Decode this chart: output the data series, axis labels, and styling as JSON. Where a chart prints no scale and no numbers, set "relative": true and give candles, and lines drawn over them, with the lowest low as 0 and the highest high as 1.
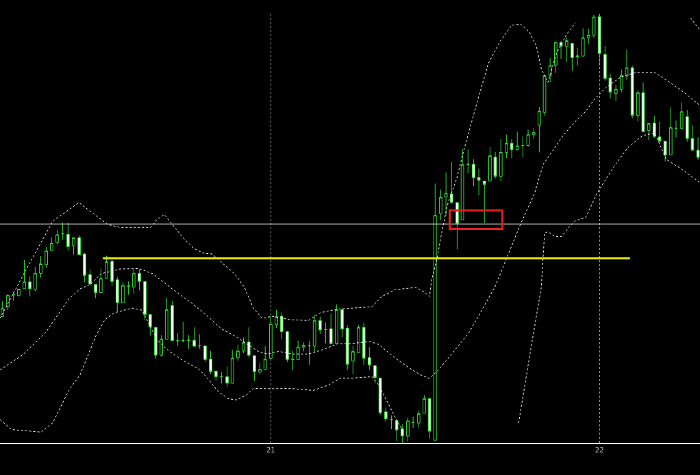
{
  "chart_data": {
    "type": "candlestick",
    "relative": true,
    "color": "#33dd33",
    "grid": "x",
    "tick_labels": "x",
    "xlim": [
      20.176,
      22.306
    ],
    "xticks": [
      21,
      22
    ],
    "x": [
      20.183,
      20.2,
      20.217,
      20.233,
      20.25,
      20.267,
      20.283,
      20.3,
      20.317,
      20.333,
      20.35,
      20.367,
      20.383,
      20.4,
      20.417,
      20.433,
      20.45,
      20.467,
      20.483,
      20.5,
      20.517,
      20.533,
      20.55,
      20.567,
      20.583,
      20.6,
      20.617,
      20.633,
      20.65,
      20.667,
      20.683,
      20.7,
      20.717,
      20.733,
      20.75,
      20.767,
      20.783,
      20.8,
      20.817,
      20.833,
      20.85,
      20.867,
      20.883,
      20.9,
      20.917,
      20.933,
      20.95,
      20.967,
      20.983,
      21,
      21.017,
      21.033,
      21.05,
      21.067,
      21.083,
      21.1,
      21.117,
      21.133,
      21.15,
      21.167,
      21.183,
      21.2,
      21.217,
      21.233,
      21.25,
      21.267,
      21.283,
      21.3,
      21.317,
      21.333,
      21.35,
      21.367,
      21.383,
      21.4,
      21.417,
      21.433,
      21.45,
      21.467,
      21.483,
      21.5,
      21.517,
      21.533,
      21.55,
      21.567,
      21.583,
      21.6,
      21.617,
      21.633,
      21.65,
      21.667,
      21.683,
      21.7,
      21.717,
      21.733,
      21.75,
      21.767,
      21.783,
      21.8,
      21.817,
      21.833,
      21.85,
      21.867,
      21.883,
      21.9,
      21.917,
      21.933,
      21.95,
      21.967,
      21.983,
      22,
      22.017,
      22.033,
      22.05,
      22.067,
      22.083,
      22.1,
      22.117,
      22.133,
      22.15,
      22.167,
      22.183,
      22.2,
      22.217,
      22.233,
      22.25,
      22.267,
      22.283,
      22.3
    ],
    "ohlc": [
      [
        0.294,
        0.33,
        0.294,
        0.313
      ],
      [
        0.318,
        0.346,
        0.309,
        0.344
      ],
      [
        0.345,
        0.351,
        0.331,
        0.345
      ],
      [
        0.343,
        0.358,
        0.341,
        0.358
      ],
      [
        0.359,
        0.426,
        0.359,
        0.375
      ],
      [
        0.375,
        0.388,
        0.341,
        0.359
      ],
      [
        0.357,
        0.41,
        0.353,
        0.395
      ],
      [
        0.395,
        0.435,
        0.385,
        0.417
      ],
      [
        0.415,
        0.456,
        0.408,
        0.447
      ],
      [
        0.448,
        0.479,
        0.447,
        0.465
      ],
      [
        0.467,
        0.496,
        0.463,
        0.485
      ],
      [
        0.487,
        0.513,
        0.473,
        0.487
      ],
      [
        0.486,
        0.513,
        0.448,
        0.457
      ],
      [
        0.459,
        0.478,
        0.439,
        0.478
      ],
      [
        0.478,
        0.484,
        0.438,
        0.438
      ],
      [
        0.44,
        0.443,
        0.374,
        0.39
      ],
      [
        0.392,
        0.404,
        0.368,
        0.37
      ],
      [
        0.369,
        0.369,
        0.337,
        0.35
      ],
      [
        0.35,
        0.406,
        0.35,
        0.383
      ],
      [
        0.383,
        0.436,
        0.383,
        0.422
      ],
      [
        0.423,
        0.427,
        0.366,
        0.376
      ],
      [
        0.38,
        0.387,
        0.307,
        0.326
      ],
      [
        0.326,
        0.375,
        0.326,
        0.367
      ],
      [
        0.365,
        0.376,
        0.345,
        0.365
      ],
      [
        0.363,
        0.404,
        0.348,
        0.395
      ],
      [
        0.395,
        0.404,
        0.355,
        0.376
      ],
      [
        0.376,
        0.376,
        0.287,
        0.299
      ],
      [
        0.299,
        0.299,
        0.25,
        0.27
      ],
      [
        0.269,
        0.271,
        0.195,
        0.204
      ],
      [
        0.204,
        0.251,
        0.202,
        0.242
      ],
      [
        0.241,
        0.338,
        0.241,
        0.31
      ],
      [
        0.32,
        0.33,
        0.238,
        0.238
      ],
      [
        0.238,
        0.256,
        0.225,
        0.238
      ],
      [
        0.238,
        0.282,
        0.234,
        0.238
      ],
      [
        0.239,
        0.251,
        0.219,
        0.239
      ],
      [
        0.239,
        0.269,
        0.223,
        0.225
      ],
      [
        0.226,
        0.253,
        0.219,
        0.226
      ],
      [
        0.226,
        0.226,
        0.188,
        0.194
      ],
      [
        0.195,
        0.214,
        0.161,
        0.166
      ],
      [
        0.167,
        0.167,
        0.145,
        0.154
      ],
      [
        0.154,
        0.165,
        0.138,
        0.154
      ],
      [
        0.154,
        0.178,
        0.13,
        0.139
      ],
      [
        0.139,
        0.217,
        0.138,
        0.197
      ],
      [
        0.198,
        0.229,
        0.191,
        0.214
      ],
      [
        0.214,
        0.245,
        0.209,
        0.234
      ],
      [
        0.235,
        0.269,
        0.199,
        0.204
      ],
      [
        0.203,
        0.203,
        0.144,
        0.165
      ],
      [
        0.165,
        0.187,
        0.16,
        0.171
      ],
      [
        0.171,
        0.225,
        0.171,
        0.195
      ],
      [
        0.197,
        0.295,
        0.197,
        0.277
      ],
      [
        0.275,
        0.31,
        0.268,
        0.294
      ],
      [
        0.295,
        0.304,
        0.242,
        0.259
      ],
      [
        0.259,
        0.261,
        0.188,
        0.194
      ],
      [
        0.194,
        0.214,
        0.169,
        0.194
      ],
      [
        0.194,
        0.238,
        0.193,
        0.223
      ],
      [
        0.223,
        0.234,
        0.213,
        0.227
      ],
      [
        0.226,
        0.238,
        0.182,
        0.226
      ],
      [
        0.225,
        0.298,
        0.21,
        0.285
      ],
      [
        0.285,
        0.294,
        0.254,
        0.263
      ],
      [
        0.264,
        0.28,
        0.232,
        0.264
      ],
      [
        0.266,
        0.301,
        0.229,
        0.231
      ],
      [
        0.231,
        0.323,
        0.231,
        0.31
      ],
      [
        0.31,
        0.314,
        0.245,
        0.265
      ],
      [
        0.267,
        0.274,
        0.169,
        0.183
      ],
      [
        0.191,
        0.226,
        0.16,
        0.213
      ],
      [
        0.21,
        0.274,
        0.21,
        0.269
      ],
      [
        0.269,
        0.28,
        0.181,
        0.197
      ],
      [
        0.199,
        0.223,
        0.17,
        0.181
      ],
      [
        0.18,
        0.181,
        0.138,
        0.152
      ],
      [
        0.151,
        0.151,
        0.065,
        0.07
      ],
      [
        0.072,
        0.082,
        0.049,
        0.056
      ],
      [
        0.054,
        0.064,
        0.032,
        0.054
      ],
      [
        0.052,
        0.052,
        0.005,
        0.03
      ],
      [
        0.033,
        0.043,
        0,
        0.016
      ],
      [
        0.016,
        0.059,
        0.003,
        0.051
      ],
      [
        0.047,
        0.061,
        0.035,
        0.047
      ],
      [
        0.046,
        0.075,
        0.036,
        0.068
      ],
      [
        0.069,
        0.111,
        0.069,
        0.103
      ],
      [
        0.103,
        0.105,
        0.01,
        0.027
      ],
      [
        0.006,
        0.604,
        0.006,
        0.53
      ],
      [
        0.534,
        0.59,
        0.519,
        0.572
      ],
      [
        0.573,
        0.63,
        0.529,
        0.581
      ],
      [
        0.58,
        0.654,
        0.558,
        0.56
      ],
      [
        0.56,
        0.56,
        0.451,
        0.511
      ],
      [
        0.52,
        0.684,
        0.52,
        0.648
      ],
      [
        0.649,
        0.684,
        0.628,
        0.649
      ],
      [
        0.649,
        0.661,
        0.598,
        0.618
      ],
      [
        0.618,
        0.639,
        0.577,
        0.612
      ],
      [
        0.61,
        0.61,
        0.512,
        0.602
      ],
      [
        0.61,
        0.689,
        0.61,
        0.669
      ],
      [
        0.666,
        0.678,
        0.616,
        0.621
      ],
      [
        0.621,
        0.708,
        0.609,
        0.677
      ],
      [
        0.677,
        0.718,
        0.663,
        0.698
      ],
      [
        0.698,
        0.708,
        0.663,
        0.683
      ],
      [
        0.683,
        0.725,
        0.682,
        0.692
      ],
      [
        0.693,
        0.714,
        0.666,
        0.693
      ],
      [
        0.693,
        0.73,
        0.69,
        0.718
      ],
      [
        0.718,
        0.733,
        0.708,
        0.723
      ],
      [
        0.74,
        0.783,
        0.677,
        0.773
      ],
      [
        0.77,
        0.856,
        0.763,
        0.856
      ],
      [
        0.856,
        0.896,
        0.84,
        0.879
      ],
      [
        0.88,
        0.935,
        0.862,
        0.933
      ],
      [
        0.933,
        0.936,
        0.895,
        0.924
      ],
      [
        0.924,
        0.945,
        0.887,
        0.937
      ],
      [
        0.931,
        0.931,
        0.867,
        0.897
      ],
      [
        0.899,
        0.921,
        0.879,
        0.902
      ],
      [
        0.901,
        0.966,
        0.901,
        0.944
      ],
      [
        0.944,
        0.965,
        0.93,
        0.95
      ],
      [
        0.95,
        0.997,
        0.944,
        0.992
      ],
      [
        0.993,
        1,
        0.879,
        0.907
      ],
      [
        0.905,
        0.925,
        0.844,
        0.849
      ],
      [
        0.85,
        0.86,
        0.803,
        0.817
      ],
      [
        0.814,
        0.834,
        0.796,
        0.824
      ],
      [
        0.824,
        0.87,
        0.817,
        0.856
      ],
      [
        0.855,
        0.916,
        0.846,
        0.874
      ],
      [
        0.874,
        0.879,
        0.756,
        0.763
      ],
      [
        0.763,
        0.821,
        0.749,
        0.816
      ],
      [
        0.816,
        0.84,
        0.725,
        0.725
      ],
      [
        0.728,
        0.744,
        0.705,
        0.744
      ],
      [
        0.745,
        0.761,
        0.71,
        0.714
      ],
      [
        0.713,
        0.749,
        0.702,
        0.703
      ],
      [
        0.703,
        0.703,
        0.656,
        0.67
      ],
      [
        0.671,
        0.782,
        0.671,
        0.735
      ],
      [
        0.733,
        0.751,
        0.712,
        0.733
      ],
      [
        0.733,
        0.793,
        0.733,
        0.772
      ],
      [
        0.76,
        0.775,
        0.702,
        0.709
      ],
      [
        0.709,
        0.74,
        0.68,
        0.682
      ],
      [
        0.682,
        0.712,
        0.659,
        0.665
      ]
    ],
    "series": [
      {
        "type": "line",
        "color": "#ffffff",
        "line_style": "dashed",
        "x": [
          20.176,
          20.26,
          20.337,
          20.416,
          20.503,
          20.541,
          20.635,
          20.655,
          20.676,
          20.691,
          20.733,
          20.766,
          20.795,
          20.822,
          20.849,
          20.878,
          20.895,
          20.92,
          20.947,
          20.974,
          21.004,
          21.058,
          21.114,
          21.15,
          21.198,
          21.249,
          21.308,
          21.337,
          21.379,
          21.441,
          21.468,
          21.483,
          21.489,
          21.506,
          21.52,
          21.537,
          21.566,
          21.587,
          21.629,
          21.662,
          21.698,
          21.733,
          21.76,
          21.787,
          21.808,
          21.823,
          21.843,
          21.87,
          21.9,
          21.927,
          21.979,
          22.277,
          22.306
        ],
        "values": [
          0.29,
          0.41,
          0.517,
          0.56,
          0.509,
          0.502,
          0.502,
          0.521,
          0.532,
          0.518,
          0.478,
          0.453,
          0.442,
          0.44,
          0.421,
          0.402,
          0.389,
          0.362,
          0.314,
          0.29,
          0.295,
          0.287,
          0.285,
          0.303,
          0.311,
          0.314,
          0.317,
          0.341,
          0.357,
          0.362,
          0.351,
          0.341,
          0.378,
          0.43,
          0.489,
          0.553,
          0.617,
          0.681,
          0.797,
          0.884,
          0.936,
          0.973,
          0.976,
          0.957,
          0.925,
          0.872,
          0.84,
          0.909,
          0.952,
          0.979,
          null,
          0.99,
          0.962
        ]
      },
      {
        "type": "line",
        "color": "#ffffff",
        "line_style": "dashed",
        "x": [
          20.176,
          20.245,
          20.316,
          20.385,
          20.42,
          20.453,
          20.483,
          20.541,
          20.599,
          20.641,
          20.703,
          20.76,
          20.808,
          20.849,
          20.895,
          20.926,
          20.962,
          20.989,
          21.025,
          21.066,
          21.114,
          21.162,
          21.204,
          21.239,
          21.302,
          21.329,
          21.379,
          21.42,
          21.454,
          21.483,
          21.51,
          21.545,
          21.579,
          21.604,
          21.683,
          21.76,
          21.802,
          21.829,
          21.858,
          21.891,
          21.927,
          21.958,
          21.985,
          22.02,
          22.066,
          22.112,
          22.168,
          22.204,
          22.25,
          22.306
        ],
        "values": [
          0.17,
          0.205,
          0.258,
          0.335,
          0.359,
          0.37,
          0.394,
          0.405,
          0.406,
          0.394,
          0.357,
          0.325,
          0.295,
          0.266,
          0.247,
          0.231,
          0.213,
          0.207,
          0.213,
          0.207,
          0.207,
          0.218,
          0.231,
          0.231,
          0.236,
          0.229,
          0.197,
          0.175,
          0.159,
          0.15,
          0.17,
          0.202,
          0.234,
          0.258,
          0.365,
          0.51,
          0.58,
          0.649,
          0.681,
          0.718,
          0.749,
          0.772,
          0.801,
          0.828,
          0.853,
          0.863,
          0.863,
          0.845,
          0.821,
          0.786
        ]
      },
      {
        "type": "line",
        "color": "#ffffff",
        "line_style": "dashed",
        "x": [
          20.176,
          20.212,
          20.301,
          20.337,
          20.385,
          20.42,
          20.468,
          20.495,
          20.524,
          20.578,
          20.608,
          20.655,
          20.691,
          20.739,
          20.78,
          20.808,
          20.837,
          20.87,
          20.895,
          20.926,
          20.947,
          21.004,
          21.058,
          21.129,
          21.177,
          21.212,
          21.249,
          21.308,
          21.329,
          21.35,
          21.379,
          21.406,
          21.583,
          21.754,
          21.791,
          21.823,
          21.833,
          21.843,
          21.864,
          21.885,
          21.906,
          21.927,
          21.958,
          21.993,
          22.039,
          22.085,
          22.131,
          22.168,
          22.204,
          22.25,
          22.306
        ],
        "values": [
          0.054,
          0.031,
          0.025,
          0.047,
          0.122,
          0.159,
          0.25,
          0.287,
          0.303,
          0.314,
          0.309,
          0.239,
          0.213,
          0.189,
          0.173,
          0.15,
          0.122,
          0.103,
          0.1,
          0.111,
          0.127,
          0.126,
          0.127,
          0.122,
          0.135,
          0.151,
          0.151,
          0.154,
          0.134,
          0.102,
          0.059,
          0.022,
          null,
          0.046,
          0.218,
          0.362,
          0.489,
          0.492,
          0.481,
          0.481,
          0.501,
          0.518,
          0.525,
          0.582,
          0.638,
          0.687,
          0.716,
          0.722,
          0.66,
          0.638,
          0.606
        ]
      },
      {
        "type": "line",
        "color": "#e8e800",
        "x": [
          20.489,
          22.093
        ],
        "values": [
          0.43,
          0.43
        ]
      }
    ],
    "ref_lines": [
      {
        "axis": "y",
        "value": 0.51,
        "color": "#ffffff"
      }
    ]
  }
}
